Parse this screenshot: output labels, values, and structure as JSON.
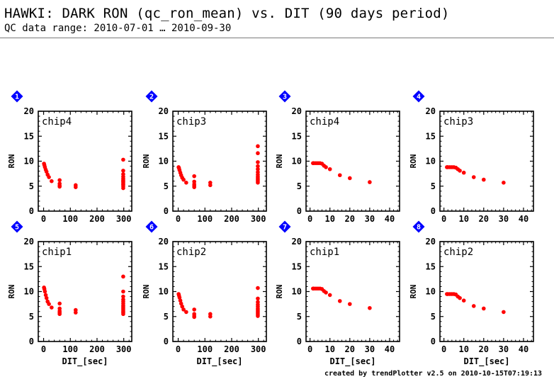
{
  "header": {
    "title": "HAWKI: DARK RON (qc_ron_mean) vs. DIT (90 days period)",
    "subtitle": "QC data range: 2010-07-01 … 2010-09-30"
  },
  "footer": {
    "credit": "created by trendPlotter v2.5 on 2010-10-15T07:19:13"
  },
  "colors": {
    "points": "#ff0000",
    "badge": "#0000ff",
    "badge_text": "#ffffff",
    "axis": "#000000"
  },
  "chart_data": [
    {
      "type": "scatter",
      "badge": "1",
      "label": "chip4",
      "xlim": [
        -20,
        330
      ],
      "ylim": [
        0,
        20
      ],
      "xticks": [
        0,
        100,
        200,
        300
      ],
      "yticks": [
        0,
        5,
        10,
        15,
        20
      ],
      "xlabel": "",
      "ylabel": "RON",
      "x": [
        1.5,
        3,
        5,
        8,
        11,
        15,
        20,
        30,
        60,
        60,
        60,
        60,
        120,
        120,
        298,
        298,
        298,
        298,
        298,
        298,
        298,
        298,
        298,
        298,
        298,
        298
      ],
      "y": [
        9.5,
        9.2,
        8.8,
        8.3,
        7.9,
        7.3,
        6.8,
        6.0,
        6.2,
        5.5,
        5.1,
        4.9,
        5.2,
        4.8,
        10.3,
        8.1,
        7.4,
        6.9,
        6.5,
        6.2,
        6.0,
        5.8,
        5.5,
        5.3,
        5.0,
        4.6
      ]
    },
    {
      "type": "scatter",
      "badge": "2",
      "label": "chip3",
      "xlim": [
        -20,
        330
      ],
      "ylim": [
        0,
        20
      ],
      "xticks": [
        0,
        100,
        200,
        300
      ],
      "yticks": [
        0,
        5,
        10,
        15,
        20
      ],
      "xlabel": "",
      "ylabel": "RON",
      "x": [
        1.5,
        3,
        5,
        8,
        11,
        15,
        20,
        30,
        60,
        60,
        60,
        60,
        60,
        120,
        120,
        298,
        298,
        298,
        298,
        298,
        298,
        298,
        298,
        298,
        298,
        298,
        298
      ],
      "y": [
        8.8,
        8.6,
        8.2,
        7.7,
        7.2,
        6.7,
        6.3,
        5.7,
        7.0,
        5.9,
        5.4,
        5.1,
        4.8,
        5.7,
        5.2,
        13.0,
        11.6,
        9.8,
        9.0,
        8.4,
        7.8,
        7.3,
        6.9,
        6.6,
        6.3,
        6.0,
        5.7
      ]
    },
    {
      "type": "scatter",
      "badge": "3",
      "label": "chip4",
      "xlim": [
        -2,
        45
      ],
      "ylim": [
        0,
        20
      ],
      "xticks": [
        0,
        10,
        20,
        30,
        40
      ],
      "yticks": [
        0,
        5,
        10,
        15,
        20
      ],
      "xlabel": "",
      "ylabel": "RON",
      "x": [
        1.5,
        2,
        3,
        4,
        5,
        6,
        7,
        8,
        10,
        15,
        20,
        30
      ],
      "y": [
        9.6,
        9.6,
        9.6,
        9.6,
        9.6,
        9.5,
        9.1,
        8.8,
        8.4,
        7.2,
        6.6,
        5.8
      ]
    },
    {
      "type": "scatter",
      "badge": "4",
      "label": "chip3",
      "xlim": [
        -2,
        45
      ],
      "ylim": [
        0,
        20
      ],
      "xticks": [
        0,
        10,
        20,
        30,
        40
      ],
      "yticks": [
        0,
        5,
        10,
        15,
        20
      ],
      "xlabel": "",
      "ylabel": "RON",
      "x": [
        1.5,
        2,
        3,
        4,
        5,
        6,
        7,
        8,
        10,
        15,
        20,
        30
      ],
      "y": [
        8.8,
        8.8,
        8.8,
        8.8,
        8.8,
        8.7,
        8.4,
        8.1,
        7.7,
        6.8,
        6.3,
        5.7
      ]
    },
    {
      "type": "scatter",
      "badge": "5",
      "label": "chip1",
      "xlim": [
        -20,
        330
      ],
      "ylim": [
        0,
        20
      ],
      "xticks": [
        0,
        100,
        200,
        300
      ],
      "yticks": [
        0,
        5,
        10,
        15,
        20
      ],
      "xlabel": "DIT_[sec]",
      "ylabel": "RON",
      "x": [
        1.5,
        3,
        5,
        8,
        11,
        15,
        20,
        30,
        60,
        60,
        60,
        60,
        60,
        120,
        120,
        298,
        298,
        298,
        298,
        298,
        298,
        298,
        298,
        298,
        298,
        298,
        298,
        298
      ],
      "y": [
        10.8,
        10.5,
        10.0,
        9.3,
        8.7,
        8.0,
        7.5,
        6.8,
        7.6,
        6.6,
        6.1,
        5.8,
        5.5,
        6.3,
        5.8,
        13.0,
        10.0,
        9.0,
        8.4,
        8.0,
        7.6,
        7.2,
        6.9,
        6.6,
        6.3,
        6.0,
        5.8,
        5.5
      ]
    },
    {
      "type": "scatter",
      "badge": "6",
      "label": "chip2",
      "xlim": [
        -20,
        330
      ],
      "ylim": [
        0,
        20
      ],
      "xticks": [
        0,
        100,
        200,
        300
      ],
      "yticks": [
        0,
        5,
        10,
        15,
        20
      ],
      "xlabel": "DIT_[sec]",
      "ylabel": "RON",
      "x": [
        1.5,
        3,
        5,
        8,
        11,
        15,
        20,
        30,
        60,
        60,
        60,
        60,
        120,
        120,
        298,
        298,
        298,
        298,
        298,
        298,
        298,
        298,
        298,
        298,
        298
      ],
      "y": [
        9.5,
        9.2,
        8.8,
        8.2,
        7.6,
        7.0,
        6.4,
        5.9,
        6.4,
        5.5,
        5.1,
        4.9,
        5.5,
        5.0,
        10.7,
        8.6,
        7.9,
        7.4,
        7.0,
        6.6,
        6.3,
        6.0,
        5.7,
        5.4,
        5.1
      ]
    },
    {
      "type": "scatter",
      "badge": "7",
      "label": "chip1",
      "xlim": [
        -2,
        45
      ],
      "ylim": [
        0,
        20
      ],
      "xticks": [
        0,
        10,
        20,
        30,
        40
      ],
      "yticks": [
        0,
        5,
        10,
        15,
        20
      ],
      "xlabel": "DIT_[sec]",
      "ylabel": "RON",
      "x": [
        1.5,
        2,
        3,
        4,
        5,
        6,
        7,
        8,
        10,
        15,
        20,
        30
      ],
      "y": [
        10.6,
        10.6,
        10.6,
        10.6,
        10.6,
        10.5,
        10.1,
        9.8,
        9.3,
        8.1,
        7.5,
        6.7
      ]
    },
    {
      "type": "scatter",
      "badge": "8",
      "label": "chip2",
      "xlim": [
        -2,
        45
      ],
      "ylim": [
        0,
        20
      ],
      "xticks": [
        0,
        10,
        20,
        30,
        40
      ],
      "yticks": [
        0,
        5,
        10,
        15,
        20
      ],
      "xlabel": "DIT_[sec]",
      "ylabel": "RON",
      "x": [
        1.5,
        2,
        3,
        4,
        5,
        6,
        7,
        8,
        10,
        15,
        20,
        30
      ],
      "y": [
        9.5,
        9.5,
        9.5,
        9.5,
        9.5,
        9.4,
        9.0,
        8.7,
        8.2,
        7.1,
        6.6,
        5.9
      ]
    }
  ]
}
